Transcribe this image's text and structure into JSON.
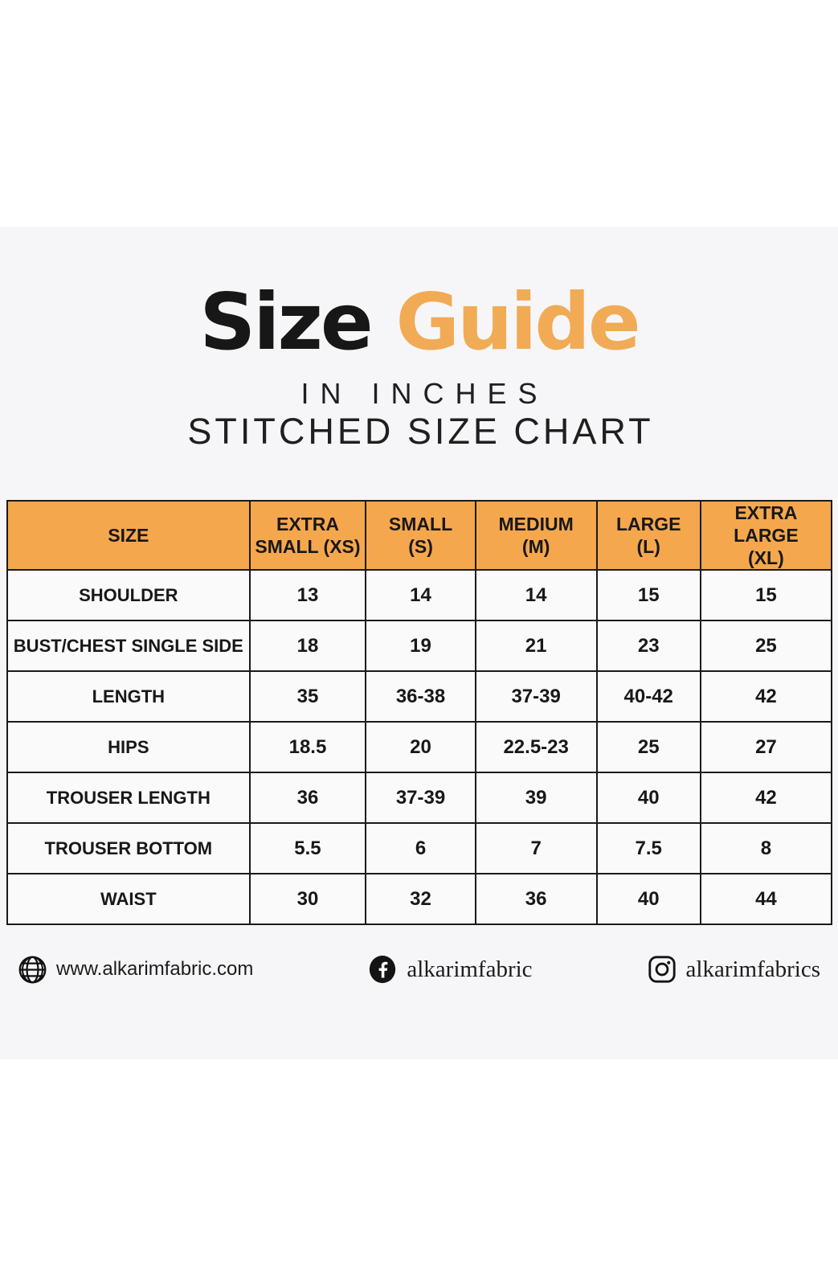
{
  "page": {
    "background": "#ffffff",
    "band_color": "#f6f6f8"
  },
  "title": {
    "word1": "Size",
    "word2": "Guide",
    "accent_color": "#F1AB55",
    "subtitle_line1": "IN INCHES",
    "subtitle_line2": "STITCHED SIZE CHART"
  },
  "table": {
    "header_bg": "#F5A74E",
    "columns_display": [
      "SIZE",
      "EXTRA\nSMALL (XS)",
      "SMALL\n(S)",
      "MEDIUM\n(M)",
      "LARGE\n(L)",
      "EXTRA LARGE\n(XL)"
    ]
  },
  "footer": {
    "website_label": "www.alkarimfabric.com",
    "facebook_label": "alkarimfabric",
    "instagram_label": "alkarimfabrics"
  },
  "chart_data": {
    "type": "table",
    "title": "Size Guide",
    "subtitle": "IN INCHES — STITCHED SIZE CHART",
    "unit": "inches",
    "columns": [
      "SIZE",
      "EXTRA SMALL (XS)",
      "SMALL (S)",
      "MEDIUM (M)",
      "LARGE (L)",
      "EXTRA LARGE (XL)"
    ],
    "rows": [
      [
        "SHOULDER",
        "13",
        "14",
        "14",
        "15",
        "15"
      ],
      [
        "BUST/CHEST SINGLE SIDE",
        "18",
        "19",
        "21",
        "23",
        "25"
      ],
      [
        "LENGTH",
        "35",
        "36-38",
        "37-39",
        "40-42",
        "42"
      ],
      [
        "HIPS",
        "18.5",
        "20",
        "22.5-23",
        "25",
        "27"
      ],
      [
        "TROUSER LENGTH",
        "36",
        "37-39",
        "39",
        "40",
        "42"
      ],
      [
        "TROUSER BOTTOM",
        "5.5",
        "6",
        "7",
        "7.5",
        "8"
      ],
      [
        "WAIST",
        "30",
        "32",
        "36",
        "40",
        "44"
      ]
    ]
  }
}
